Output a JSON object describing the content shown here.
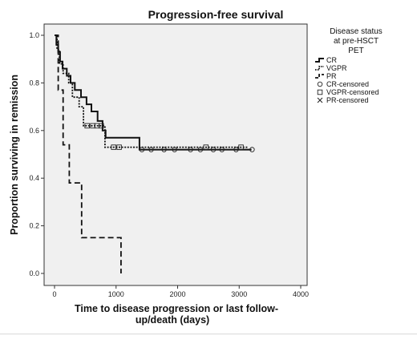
{
  "chart_data": {
    "type": "line",
    "title": "Progression-free survival",
    "xlabel_line1": "Time to disease progression or last follow-",
    "xlabel_line2": "up/death (days)",
    "ylabel": "Proportion surviving in remission",
    "xlim": [
      0,
      4000
    ],
    "ylim": [
      0,
      1.0
    ],
    "x_ticks": [
      0,
      1000,
      2000,
      3000,
      4000
    ],
    "y_ticks": [
      0.0,
      0.2,
      0.4,
      0.6,
      0.8,
      1.0
    ],
    "x_tick_labels": [
      "0",
      "1000",
      "2000",
      "3000",
      "4000"
    ],
    "y_tick_labels": [
      "0.0",
      "0.2",
      "0.4",
      "0.6",
      "0.8",
      "1.0"
    ],
    "grid": false,
    "plot_background": "#f0f0f0",
    "legend": {
      "title_lines": [
        "Disease status",
        "at pre-HSCT",
        "PET"
      ],
      "placement": "right",
      "entries": [
        {
          "label": "CR",
          "kind": "line",
          "dash": "solid"
        },
        {
          "label": "VGPR",
          "kind": "line",
          "dash": "dotted"
        },
        {
          "label": "PR",
          "kind": "line",
          "dash": "dashed"
        },
        {
          "label": "CR-censored",
          "kind": "marker",
          "marker": "circle"
        },
        {
          "label": "VGPR-censored",
          "kind": "marker",
          "marker": "square"
        },
        {
          "label": "PR-censored",
          "kind": "marker",
          "marker": "x"
        }
      ]
    },
    "series": [
      {
        "label": "CR",
        "dash": "solid",
        "steps": [
          [
            0,
            1.0
          ],
          [
            30,
            0.96
          ],
          [
            60,
            0.93
          ],
          [
            90,
            0.89
          ],
          [
            130,
            0.86
          ],
          [
            200,
            0.83
          ],
          [
            260,
            0.8
          ],
          [
            330,
            0.77
          ],
          [
            430,
            0.74
          ],
          [
            520,
            0.71
          ],
          [
            600,
            0.68
          ],
          [
            700,
            0.64
          ],
          [
            780,
            0.6
          ],
          [
            830,
            0.57
          ],
          [
            1380,
            0.52
          ],
          [
            3200,
            0.52
          ]
        ],
        "censored": [
          1420,
          1570,
          1780,
          1950,
          2210,
          2370,
          2580,
          2720,
          2950,
          3210
        ],
        "censored_marker": "circle"
      },
      {
        "label": "VGPR",
        "dash": "dotted",
        "steps": [
          [
            0,
            1.0
          ],
          [
            40,
            0.94
          ],
          [
            80,
            0.88
          ],
          [
            140,
            0.84
          ],
          [
            230,
            0.8
          ],
          [
            290,
            0.74
          ],
          [
            400,
            0.7
          ],
          [
            470,
            0.62
          ],
          [
            820,
            0.53
          ],
          [
            3150,
            0.53
          ]
        ],
        "censored": [
          530,
          620,
          690,
          760,
          960,
          1050,
          2460,
          3030
        ],
        "censored_marker": "square"
      },
      {
        "label": "PR",
        "dash": "dashed",
        "steps": [
          [
            0,
            1.0
          ],
          [
            60,
            0.77
          ],
          [
            140,
            0.54
          ],
          [
            240,
            0.38
          ],
          [
            440,
            0.15
          ],
          [
            1080,
            0.0
          ]
        ],
        "censored": [],
        "censored_marker": "x"
      }
    ]
  }
}
